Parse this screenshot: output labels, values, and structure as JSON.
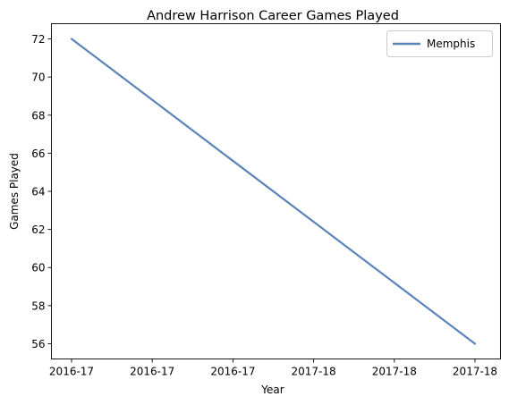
{
  "chart_data": {
    "type": "line",
    "title": "Andrew Harrison  Career Games Played",
    "xlabel": "Year",
    "ylabel": "Games Played",
    "x": [
      0,
      1
    ],
    "x_tick_labels": [
      "2016-17",
      "2016-17",
      "2016-17",
      "2017-18",
      "2017-18",
      "2017-18"
    ],
    "ylim": [
      55.2,
      72.8
    ],
    "y_ticks": [
      56,
      58,
      60,
      62,
      64,
      66,
      68,
      70,
      72
    ],
    "series": [
      {
        "name": "Memphis",
        "values": [
          72,
          56
        ],
        "color": "#5b84b8"
      }
    ],
    "grid": false,
    "legend_position": "top-right"
  }
}
